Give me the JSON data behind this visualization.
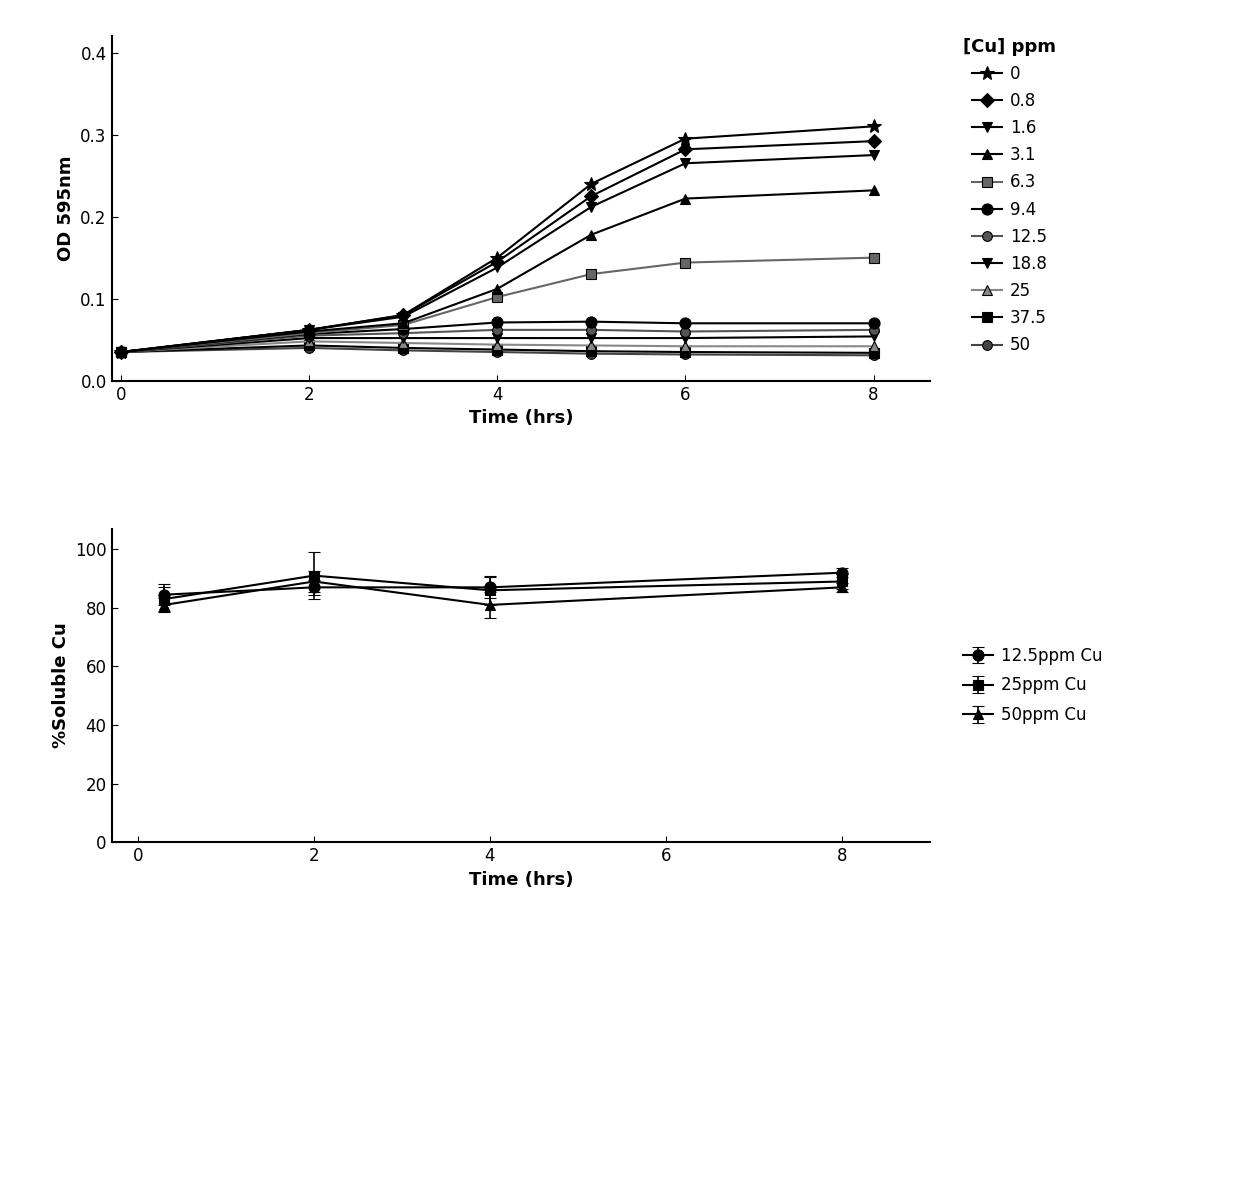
{
  "top_chart": {
    "xlabel": "Time (hrs)",
    "ylabel": "OD 595nm",
    "xlim": [
      -0.1,
      8.6
    ],
    "ylim": [
      0.0,
      0.42
    ],
    "xticks": [
      0,
      2,
      4,
      6,
      8
    ],
    "yticks": [
      0.0,
      0.1,
      0.2,
      0.3,
      0.4
    ],
    "legend_title": "[Cu] ppm",
    "series": [
      {
        "label": "0",
        "x": [
          0,
          2,
          3,
          4,
          5,
          6,
          8
        ],
        "y": [
          0.035,
          0.062,
          0.08,
          0.15,
          0.24,
          0.295,
          0.31
        ],
        "marker": "*",
        "markersize": 10,
        "color": "#000000",
        "zorder": 10
      },
      {
        "label": "0.8",
        "x": [
          0,
          2,
          3,
          4,
          5,
          6,
          8
        ],
        "y": [
          0.035,
          0.062,
          0.08,
          0.145,
          0.225,
          0.282,
          0.292
        ],
        "marker": "D",
        "markersize": 7,
        "color": "#000000",
        "zorder": 9
      },
      {
        "label": "1.6",
        "x": [
          0,
          2,
          3,
          4,
          5,
          6,
          8
        ],
        "y": [
          0.035,
          0.062,
          0.078,
          0.138,
          0.212,
          0.265,
          0.275
        ],
        "marker": "v",
        "markersize": 7,
        "color": "#000000",
        "zorder": 8
      },
      {
        "label": "3.1",
        "x": [
          0,
          2,
          3,
          4,
          5,
          6,
          8
        ],
        "y": [
          0.035,
          0.06,
          0.07,
          0.112,
          0.178,
          0.222,
          0.232
        ],
        "marker": "^",
        "markersize": 7,
        "color": "#000000",
        "zorder": 7
      },
      {
        "label": "6.3",
        "x": [
          0,
          2,
          3,
          4,
          5,
          6,
          8
        ],
        "y": [
          0.035,
          0.058,
          0.068,
          0.102,
          0.13,
          0.144,
          0.15
        ],
        "marker": "s",
        "markersize": 7,
        "color": "#666666",
        "zorder": 6
      },
      {
        "label": "9.4",
        "x": [
          0,
          2,
          3,
          4,
          5,
          6,
          8
        ],
        "y": [
          0.035,
          0.057,
          0.063,
          0.071,
          0.072,
          0.07,
          0.07
        ],
        "marker": "o",
        "markersize": 8,
        "color": "#000000",
        "zorder": 5
      },
      {
        "label": "12.5",
        "x": [
          0,
          2,
          3,
          4,
          5,
          6,
          8
        ],
        "y": [
          0.035,
          0.055,
          0.058,
          0.062,
          0.062,
          0.06,
          0.062
        ],
        "marker": "o",
        "markersize": 7,
        "color": "#555555",
        "zorder": 4
      },
      {
        "label": "18.8",
        "x": [
          0,
          2,
          3,
          4,
          5,
          6,
          8
        ],
        "y": [
          0.035,
          0.052,
          0.052,
          0.052,
          0.052,
          0.052,
          0.054
        ],
        "marker": "v",
        "markersize": 7,
        "color": "#000000",
        "zorder": 3
      },
      {
        "label": "25",
        "x": [
          0,
          2,
          3,
          4,
          5,
          6,
          8
        ],
        "y": [
          0.035,
          0.048,
          0.046,
          0.044,
          0.043,
          0.042,
          0.042
        ],
        "marker": "^",
        "markersize": 7,
        "color": "#888888",
        "zorder": 2
      },
      {
        "label": "37.5",
        "x": [
          0,
          2,
          3,
          4,
          5,
          6,
          8
        ],
        "y": [
          0.035,
          0.043,
          0.04,
          0.038,
          0.036,
          0.035,
          0.034
        ],
        "marker": "s",
        "markersize": 7,
        "color": "#000000",
        "zorder": 1
      },
      {
        "label": "50",
        "x": [
          0,
          2,
          3,
          4,
          5,
          6,
          8
        ],
        "y": [
          0.035,
          0.04,
          0.037,
          0.035,
          0.033,
          0.032,
          0.031
        ],
        "marker": "o",
        "markersize": 7,
        "color": "#444444",
        "zorder": 0
      }
    ]
  },
  "bottom_chart": {
    "xlabel": "Time (hrs)",
    "ylabel": "%Soluble Cu",
    "xlim": [
      -0.3,
      9.0
    ],
    "ylim": [
      0,
      107
    ],
    "xticks": [
      0,
      2,
      4,
      6,
      8
    ],
    "yticks": [
      0,
      20,
      40,
      60,
      80,
      100
    ],
    "series": [
      {
        "label": "12.5ppm Cu",
        "x": [
          0.3,
          2,
          4,
          8
        ],
        "y": [
          84.5,
          87,
          87,
          92
        ],
        "yerr": [
          3.5,
          2.5,
          3.5,
          1.5
        ],
        "marker": "o",
        "markersize": 8,
        "color": "#000000"
      },
      {
        "label": "25ppm Cu",
        "x": [
          0.3,
          2,
          4,
          8
        ],
        "y": [
          83,
          91,
          86,
          89
        ],
        "yerr": [
          4,
          8,
          5,
          2.5
        ],
        "marker": "s",
        "markersize": 7,
        "color": "#000000"
      },
      {
        "label": "50ppm Cu",
        "x": [
          0.3,
          2,
          4,
          8
        ],
        "y": [
          81,
          89,
          81,
          87
        ],
        "yerr": [
          2.5,
          3.5,
          4.5,
          1.5
        ],
        "marker": "^",
        "markersize": 7,
        "color": "#000000"
      }
    ]
  }
}
